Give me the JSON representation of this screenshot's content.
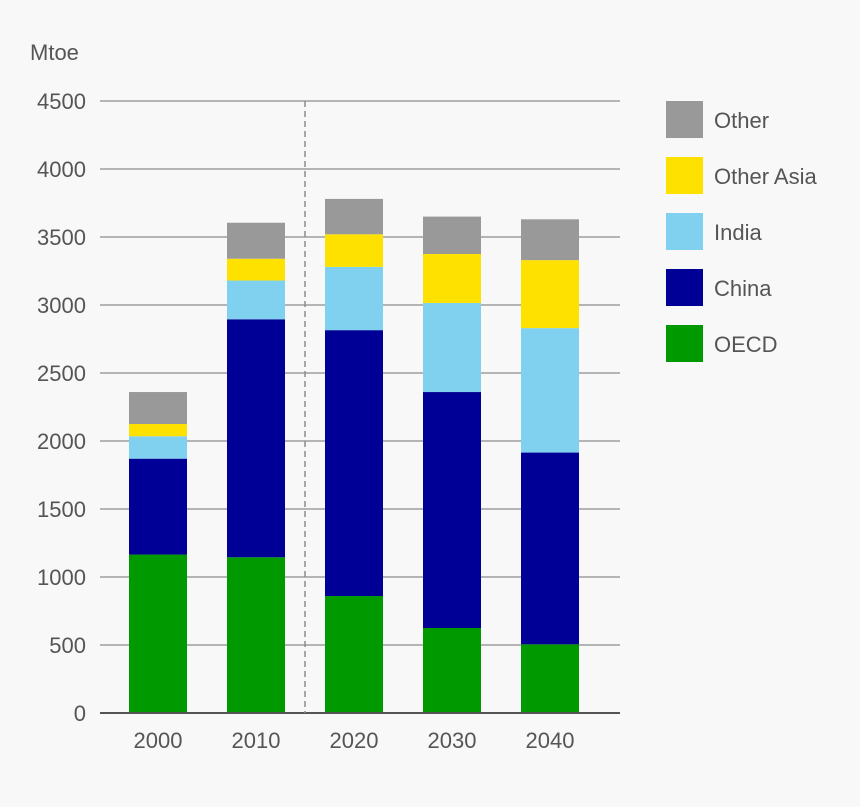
{
  "chart_data": {
    "type": "bar",
    "stacked": true,
    "title": "",
    "ylabel": "Mtoe",
    "xlabel": "",
    "ylim": [
      0,
      4500
    ],
    "yticks": [
      0,
      500,
      1000,
      1500,
      2000,
      2500,
      3000,
      3500,
      4000,
      4500
    ],
    "categories": [
      "2000",
      "2010",
      "2020",
      "2030",
      "2040"
    ],
    "divider_after": "2010",
    "series": [
      {
        "name": "OECD",
        "color": "#009a00",
        "values": [
          1165,
          1145,
          860,
          625,
          505
        ]
      },
      {
        "name": "China",
        "color": "#000096",
        "values": [
          705,
          1750,
          1955,
          1735,
          1410
        ]
      },
      {
        "name": "India",
        "color": "#80d0ef",
        "values": [
          165,
          285,
          465,
          655,
          915
        ]
      },
      {
        "name": "Other Asia",
        "color": "#ffe100",
        "values": [
          90,
          160,
          240,
          360,
          500
        ]
      },
      {
        "name": "Other",
        "color": "#999999",
        "values": [
          235,
          265,
          260,
          275,
          300
        ]
      }
    ],
    "legend": [
      "Other",
      "Other Asia",
      "India",
      "China",
      "OECD"
    ],
    "legend_position": "right"
  }
}
